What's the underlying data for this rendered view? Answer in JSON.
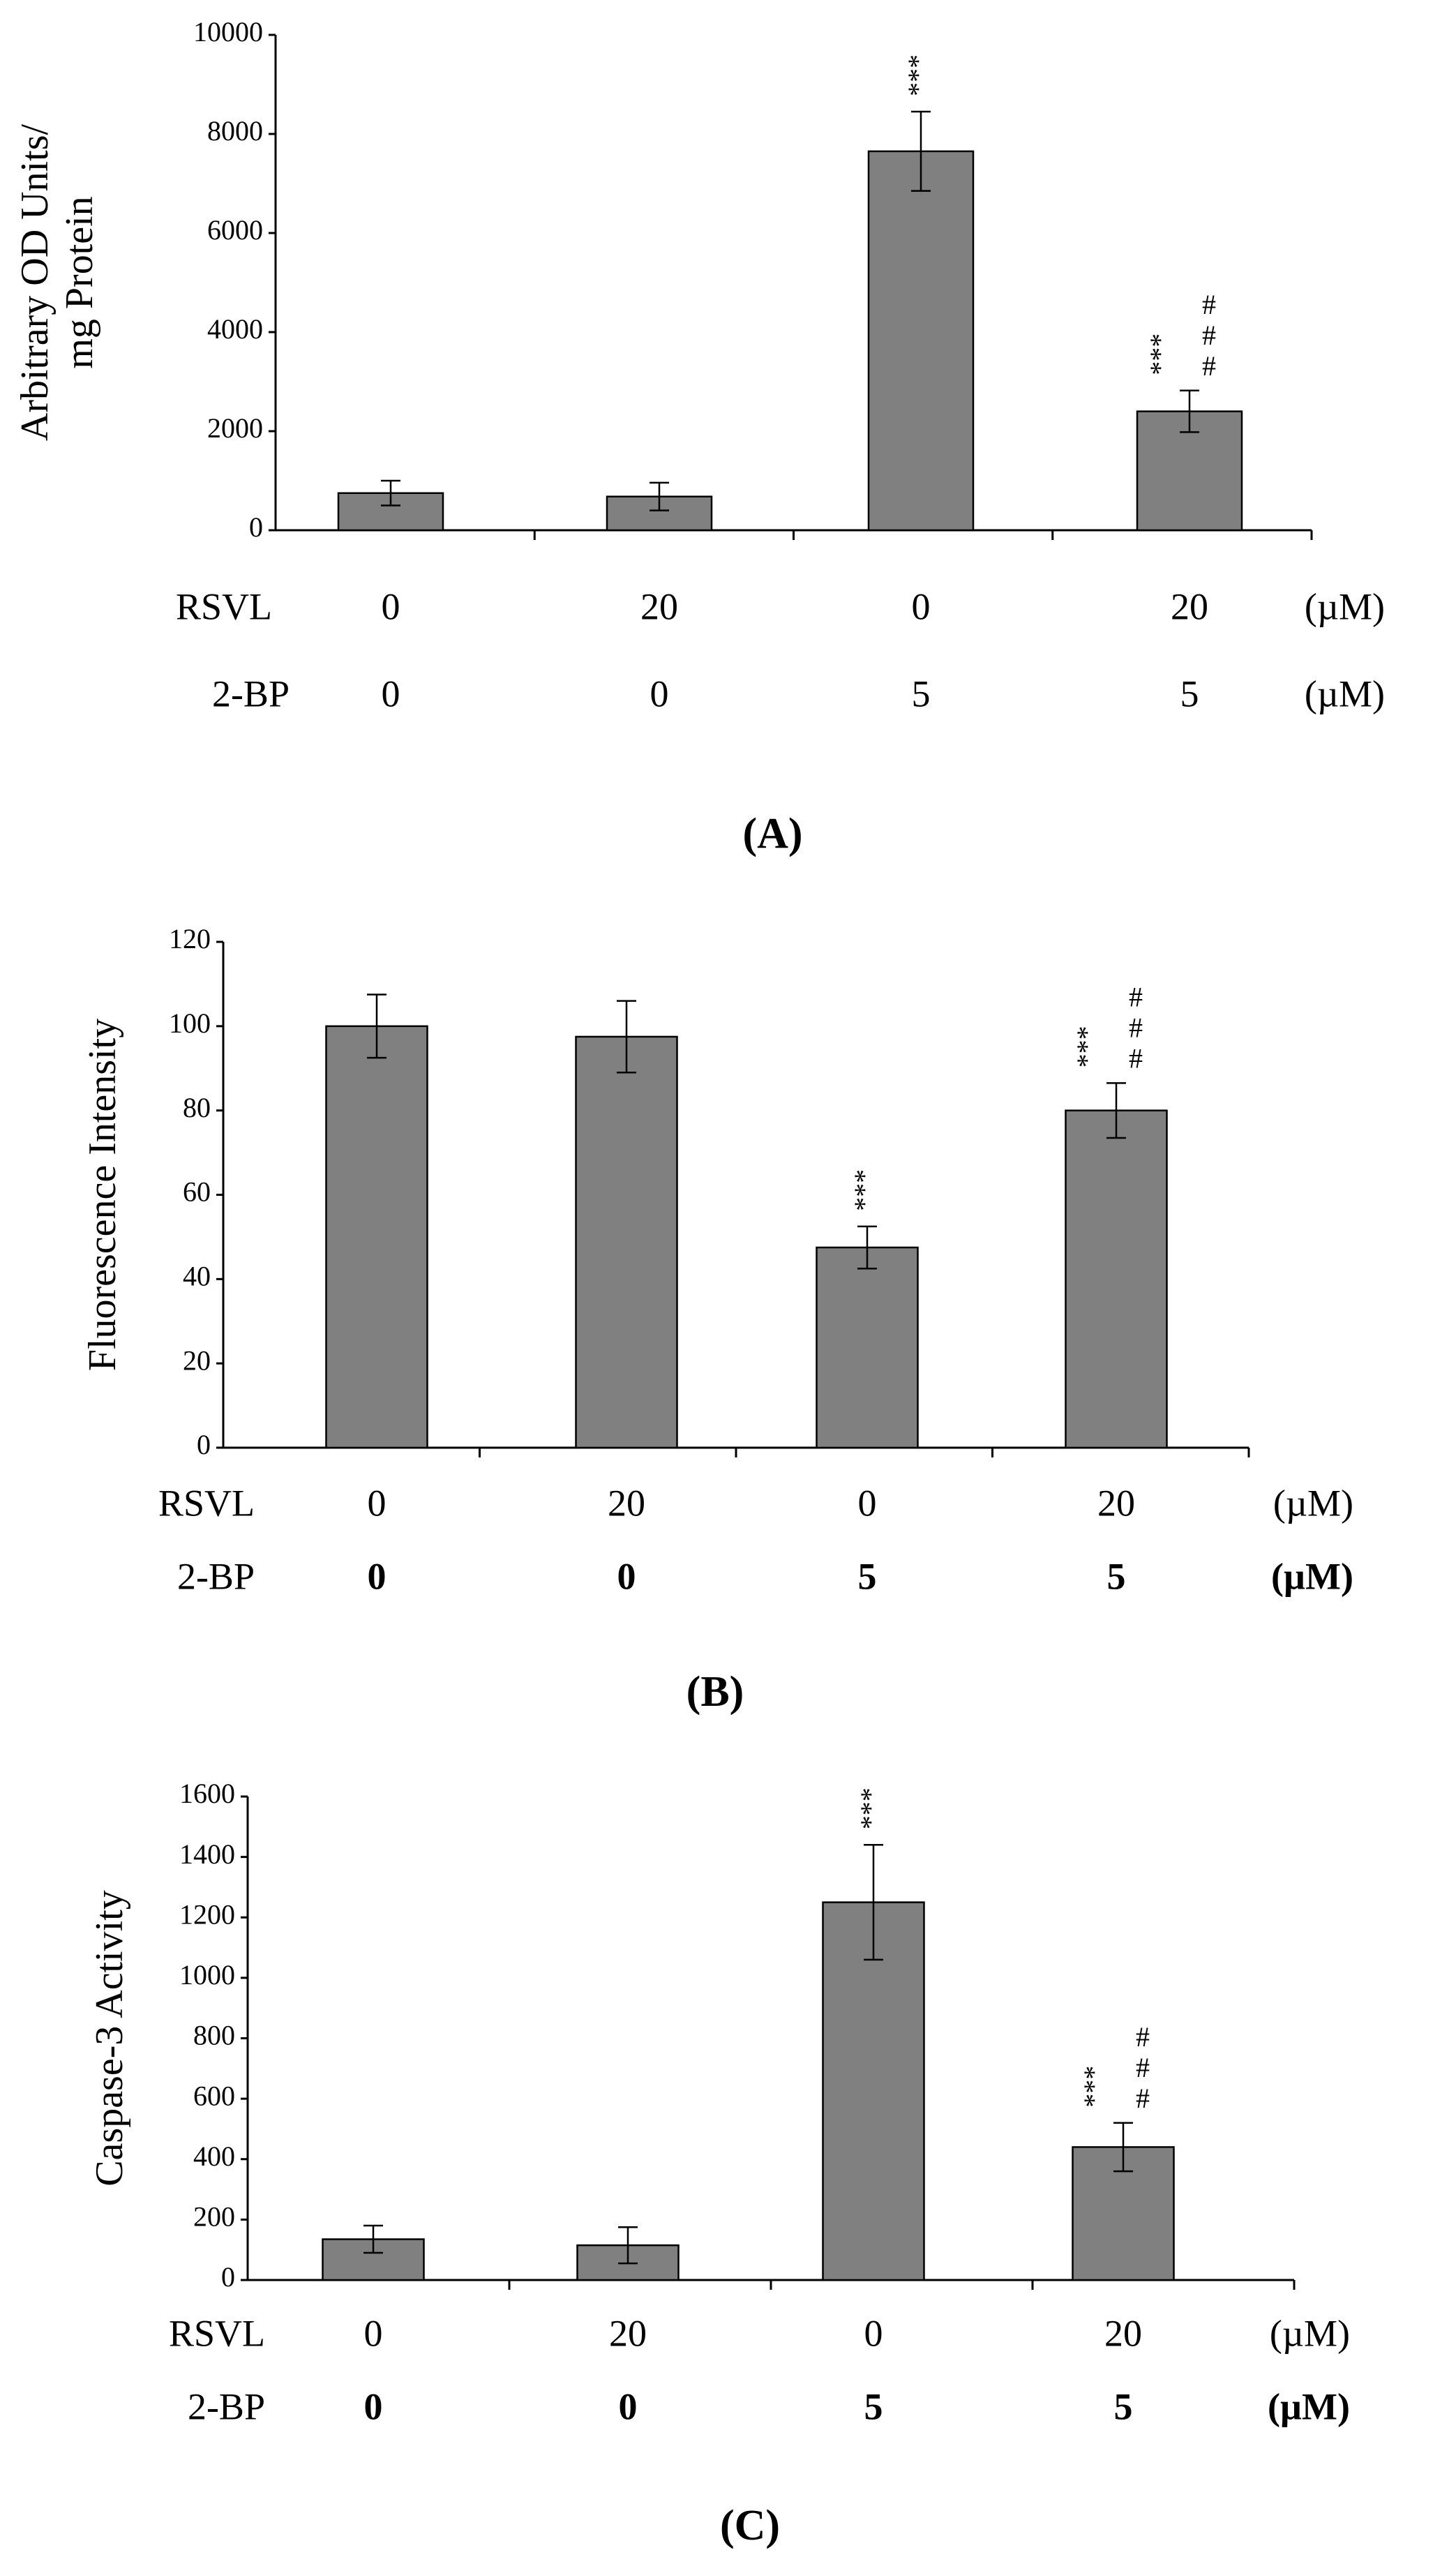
{
  "chart_data": [
    {
      "type": "bar",
      "panel_label": "(A)",
      "ylabel_lines": [
        "Arbitrary OD Units/",
        "mg Protein"
      ],
      "ylim": [
        0,
        10000
      ],
      "yticks": [
        0,
        2000,
        4000,
        6000,
        8000,
        10000
      ],
      "values": [
        750,
        680,
        7650,
        2400
      ],
      "errors": [
        250,
        280,
        800,
        420
      ],
      "significance": [
        {
          "stars": "",
          "hashes": ""
        },
        {
          "stars": "",
          "hashes": ""
        },
        {
          "stars": "***",
          "hashes": ""
        },
        {
          "stars": "***",
          "hashes": "###"
        }
      ],
      "conditions": [
        {
          "name": "RSVL",
          "values": [
            "0",
            "20",
            "0",
            "20"
          ],
          "unit": "(µM)",
          "bold": false
        },
        {
          "name": "2-BP",
          "values": [
            "0",
            "0",
            "5",
            "5"
          ],
          "unit": "(µM)",
          "bold": false
        }
      ]
    },
    {
      "type": "bar",
      "panel_label": "(B)",
      "ylabel_lines": [
        "Fluorescence Intensity"
      ],
      "ylim": [
        0,
        120
      ],
      "yticks": [
        0,
        20,
        40,
        60,
        80,
        100,
        120
      ],
      "values": [
        100,
        97.5,
        47.5,
        80
      ],
      "errors": [
        7.5,
        8.5,
        5,
        6.5
      ],
      "significance": [
        {
          "stars": "",
          "hashes": ""
        },
        {
          "stars": "",
          "hashes": ""
        },
        {
          "stars": "***",
          "hashes": ""
        },
        {
          "stars": "***",
          "hashes": "###"
        }
      ],
      "conditions": [
        {
          "name": "RSVL",
          "values": [
            "0",
            "20",
            "0",
            "20"
          ],
          "unit": "(µM)",
          "bold": false
        },
        {
          "name": "2-BP",
          "values": [
            "0",
            "0",
            "5",
            "5"
          ],
          "unit": "(µM)",
          "bold": true
        }
      ]
    },
    {
      "type": "bar",
      "panel_label": "(C)",
      "ylabel_lines": [
        "Caspase-3 Activity"
      ],
      "ylim": [
        0,
        1600
      ],
      "yticks": [
        0,
        200,
        400,
        600,
        800,
        1000,
        1200,
        1400,
        1600
      ],
      "values": [
        135,
        115,
        1250,
        440
      ],
      "errors": [
        45,
        60,
        190,
        80
      ],
      "significance": [
        {
          "stars": "",
          "hashes": ""
        },
        {
          "stars": "",
          "hashes": ""
        },
        {
          "stars": "***",
          "hashes": ""
        },
        {
          "stars": "***",
          "hashes": "###"
        }
      ],
      "conditions": [
        {
          "name": "RSVL",
          "values": [
            "0",
            "20",
            "0",
            "20"
          ],
          "unit": "(µM)",
          "bold": false
        },
        {
          "name": "2-BP",
          "values": [
            "0",
            "0",
            "5",
            "5"
          ],
          "unit": "(µM)",
          "bold": true
        }
      ]
    }
  ],
  "colors": {
    "bar": "#808080",
    "stroke": "#000000",
    "background": "#ffffff"
  }
}
